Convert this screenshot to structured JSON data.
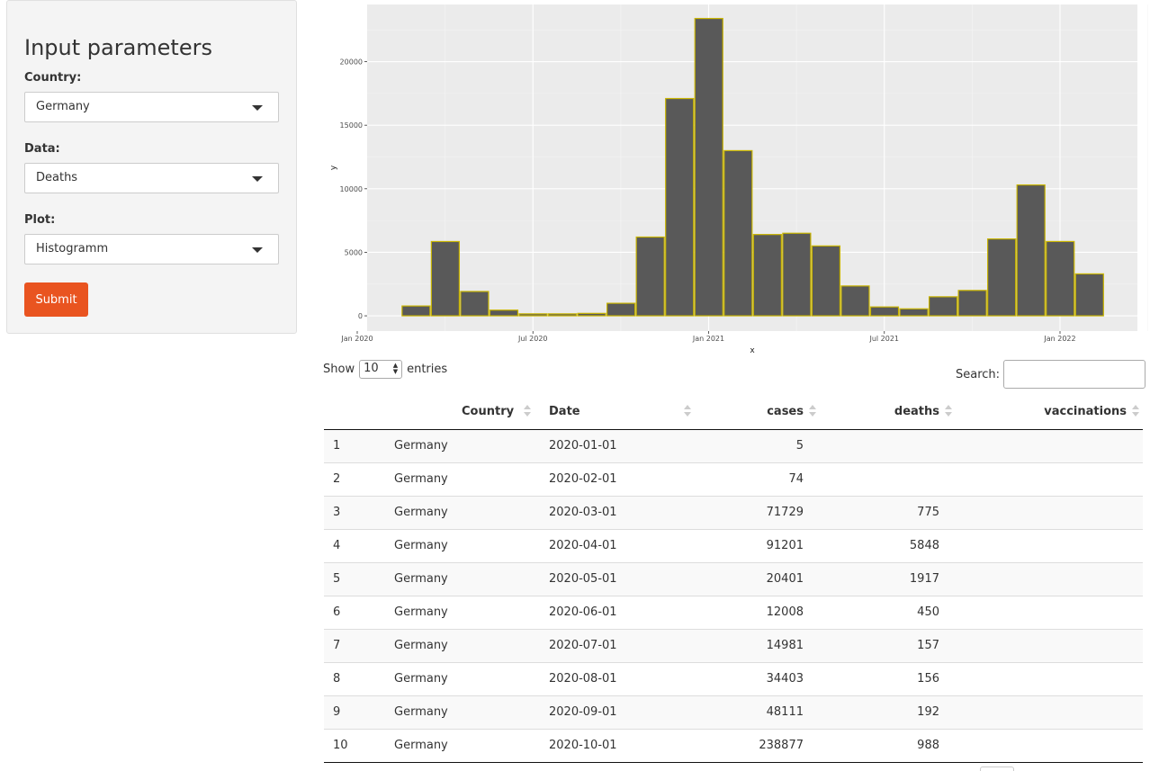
{
  "sidebar": {
    "title": "Input parameters",
    "country": {
      "label": "Country:",
      "value": "Germany"
    },
    "data": {
      "label": "Data:",
      "value": "Deaths"
    },
    "plot": {
      "label": "Plot:",
      "value": "Histogramm"
    },
    "submit_label": "Submit"
  },
  "chart_data": {
    "type": "bar",
    "xlabel": "x",
    "ylabel": "y",
    "x_tick_labels": [
      "Jan 2020",
      "Jul 2020",
      "Jan 2021",
      "Jul 2021",
      "Jan 2022"
    ],
    "y_ticks": [
      0,
      5000,
      10000,
      15000,
      20000
    ],
    "ylim": [
      -1200,
      24500
    ],
    "grid": true,
    "bar_fill": "#595959",
    "bar_outline": "#c8b400",
    "panel_background": "#ebebeb",
    "categories": [
      "2020-03",
      "2020-04",
      "2020-05",
      "2020-06",
      "2020-07",
      "2020-08",
      "2020-09",
      "2020-10",
      "2020-11",
      "2020-12",
      "2021-01",
      "2021-02",
      "2021-03",
      "2021-04",
      "2021-05",
      "2021-06",
      "2021-07",
      "2021-08",
      "2021-09",
      "2021-10",
      "2021-11",
      "2021-12",
      "2022-01",
      "2022-02"
    ],
    "values": [
      775,
      5848,
      1917,
      450,
      157,
      156,
      192,
      988,
      6200,
      17100,
      23400,
      13000,
      6400,
      6500,
      5500,
      2350,
      700,
      550,
      1500,
      2000,
      6050,
      10300,
      5850,
      3300
    ]
  },
  "table": {
    "show_label": "Show",
    "entries_label": "entries",
    "page_length": "10",
    "search_label": "Search:",
    "columns": [
      "",
      "Country",
      "Date",
      "cases",
      "deaths",
      "vaccinations"
    ],
    "rows": [
      [
        "1",
        "Germany",
        "2020-01-01",
        "5",
        "",
        ""
      ],
      [
        "2",
        "Germany",
        "2020-02-01",
        "74",
        "",
        ""
      ],
      [
        "3",
        "Germany",
        "2020-03-01",
        "71729",
        "775",
        ""
      ],
      [
        "4",
        "Germany",
        "2020-04-01",
        "91201",
        "5848",
        ""
      ],
      [
        "5",
        "Germany",
        "2020-05-01",
        "20401",
        "1917",
        ""
      ],
      [
        "6",
        "Germany",
        "2020-06-01",
        "12008",
        "450",
        ""
      ],
      [
        "7",
        "Germany",
        "2020-07-01",
        "14981",
        "157",
        ""
      ],
      [
        "8",
        "Germany",
        "2020-08-01",
        "34403",
        "156",
        ""
      ],
      [
        "9",
        "Germany",
        "2020-09-01",
        "48111",
        "192",
        ""
      ],
      [
        "10",
        "Germany",
        "2020-10-01",
        "238877",
        "988",
        ""
      ]
    ]
  },
  "colors": {
    "accent": "#e95420",
    "panel_bg": "#f4f4f4"
  },
  "icons": {
    "select_caret": "caret-down-icon",
    "sort": "sort-icon"
  }
}
